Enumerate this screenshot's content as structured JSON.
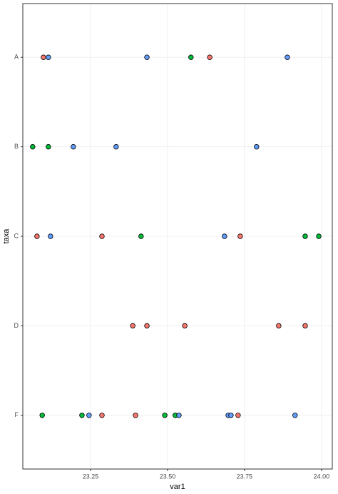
{
  "chart_data": {
    "type": "dotplot",
    "x_label": "var1",
    "y_label": "taxa",
    "categories": [
      "A",
      "B",
      "C",
      "D",
      "F"
    ],
    "xlim": [
      23.03,
      24.035
    ],
    "xticks": [
      {
        "value": 23.25,
        "label": "23.25"
      },
      {
        "value": 23.5,
        "label": "23.50"
      },
      {
        "value": 23.75,
        "label": "23.75"
      },
      {
        "value": 24.0,
        "label": "24.00"
      }
    ],
    "grid": true,
    "series": [
      {
        "color": "#F8766D",
        "x": [
          23.097,
          23.637,
          23.076,
          23.287,
          23.736,
          23.387,
          23.433,
          23.556,
          23.861,
          23.947,
          23.287,
          23.396,
          23.729
        ],
        "y": [
          "A",
          "A",
          "C",
          "C",
          "C",
          "D",
          "D",
          "D",
          "D",
          "D",
          "F",
          "F",
          "F"
        ]
      },
      {
        "color": "#00BA38",
        "x": [
          23.576,
          23.062,
          23.113,
          23.414,
          23.947,
          23.991,
          23.093,
          23.222,
          23.491,
          23.525
        ],
        "y": [
          "A",
          "B",
          "B",
          "C",
          "C",
          "C",
          "F",
          "F",
          "F",
          "F"
        ]
      },
      {
        "color": "#619CFF",
        "x": [
          23.113,
          23.433,
          23.889,
          23.194,
          23.333,
          23.789,
          23.12,
          23.685,
          23.245,
          23.537,
          23.697,
          23.706,
          23.914
        ],
        "y": [
          "A",
          "A",
          "A",
          "B",
          "B",
          "B",
          "C",
          "C",
          "F",
          "F",
          "F",
          "F",
          "F"
        ]
      }
    ]
  }
}
